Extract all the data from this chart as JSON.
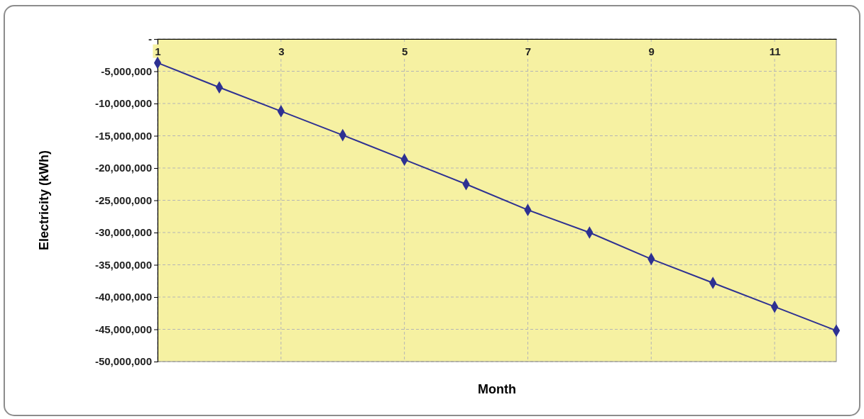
{
  "chart_data": {
    "type": "line",
    "xlabel": "Month",
    "ylabel": "Electricity (kWh)",
    "x": [
      1,
      2,
      3,
      4,
      5,
      6,
      7,
      8,
      9,
      10,
      11,
      12
    ],
    "series": [
      {
        "color": "#2e3192",
        "values": [
          -3700000,
          -7500000,
          -11200000,
          -14900000,
          -18700000,
          -22500000,
          -26500000,
          -30000000,
          -34100000,
          -37800000,
          -41500000,
          -45200000
        ]
      }
    ],
    "xlim": [
      1,
      12
    ],
    "xticks": [
      1,
      3,
      5,
      7,
      9,
      11
    ],
    "ylim": [
      -50000000,
      0
    ],
    "yticks": [
      {
        "value": 0,
        "label": "-"
      },
      {
        "value": -5000000,
        "label": "-5,000,000"
      },
      {
        "value": -10000000,
        "label": "-10,000,000"
      },
      {
        "value": -15000000,
        "label": "-15,000,000"
      },
      {
        "value": -20000000,
        "label": "-20,000,000"
      },
      {
        "value": -25000000,
        "label": "-25,000,000"
      },
      {
        "value": -30000000,
        "label": "-30,000,000"
      },
      {
        "value": -35000000,
        "label": "-35,000,000"
      },
      {
        "value": -40000000,
        "label": "-40,000,000"
      },
      {
        "value": -45000000,
        "label": "-45,000,000"
      },
      {
        "value": -50000000,
        "label": "-50,000,000"
      }
    ],
    "grid": true,
    "marker": "diamond",
    "line_style": "solid"
  }
}
